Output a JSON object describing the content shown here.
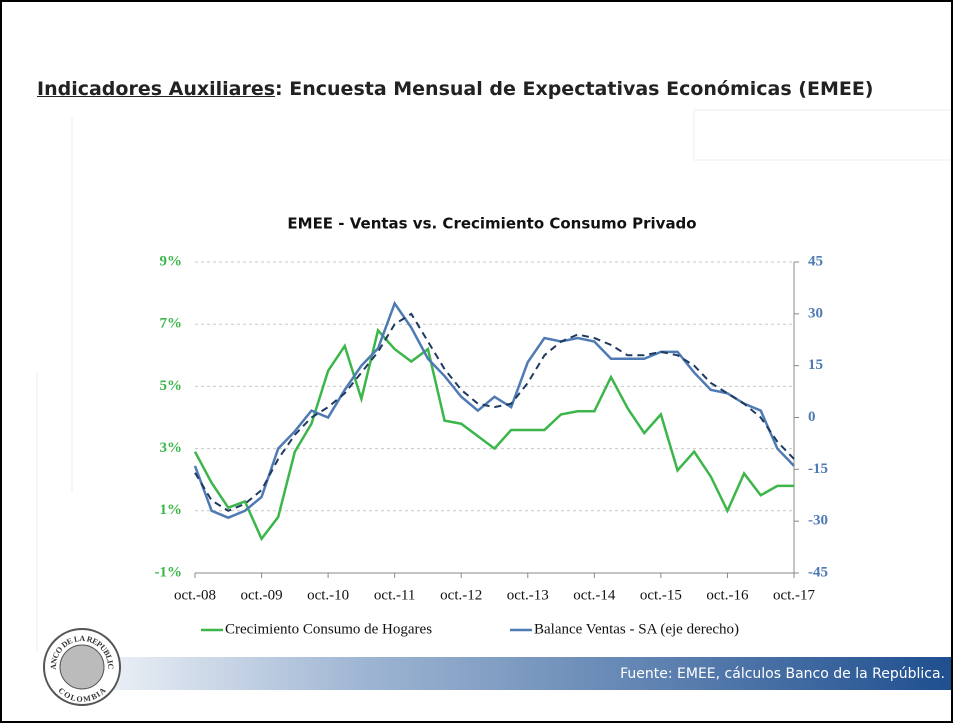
{
  "slide": {
    "title": [
      "Indicadores Auxiliares",
      ": Encuesta Mensual de Expectativas Económicas (EMEE)"
    ],
    "source": "Fuente: EMEE, cálculos Banco de la República.",
    "logo": [
      "BANCO DE LA REPUBLICA",
      "COLOMBIA"
    ]
  },
  "chart_data": {
    "type": "line",
    "title": "EMEE - Ventas vs. Crecimiento Consumo Privado",
    "categories": [
      "oct.-08",
      null,
      null,
      null,
      "oct.-09",
      null,
      null,
      null,
      "oct.-10",
      null,
      null,
      null,
      "oct.-11",
      null,
      null,
      null,
      "oct.-12",
      null,
      null,
      null,
      "oct.-13",
      null,
      null,
      null,
      "oct.-14",
      null,
      null,
      null,
      "oct.-15",
      null,
      null,
      null,
      "oct.-16",
      null,
      null,
      null,
      "oct.-17"
    ],
    "series": [
      {
        "name": "Crecimiento Consumo de Hogares",
        "color": "#3cb64a",
        "axis": "y",
        "values": [
          2.9,
          1.9,
          1.1,
          1.3,
          0.1,
          0.8,
          2.9,
          3.8,
          5.5,
          6.3,
          4.6,
          6.8,
          6.2,
          5.8,
          6.2,
          3.9,
          3.8,
          3.4,
          3.0,
          3.6,
          3.6,
          3.6,
          4.1,
          4.2,
          4.2,
          5.3,
          4.3,
          3.5,
          4.1,
          2.3,
          2.9,
          2.1,
          1.0,
          2.2,
          1.5,
          1.8,
          1.8
        ]
      },
      {
        "name": "Balance Ventas - SA (eje derecho)",
        "color": "#4f7ab3",
        "axis": "y2",
        "values": [
          -14,
          -27,
          -29,
          -27,
          -23,
          -9,
          -4,
          2,
          0,
          8,
          15,
          20,
          33,
          26,
          17,
          12,
          6,
          2,
          6,
          3,
          16,
          23,
          22,
          23,
          22,
          17,
          17,
          17,
          19,
          19,
          13,
          8,
          7,
          4,
          2,
          -9,
          -14
        ]
      },
      {
        "color": "#1f3a5f",
        "axis": "y2",
        "dashed": true,
        "values": [
          -16,
          -24,
          -27,
          -25,
          -21,
          -12,
          -5,
          0,
          3,
          7,
          13,
          19,
          27,
          30,
          22,
          14,
          8,
          4,
          3,
          4,
          10,
          18,
          22,
          24,
          23,
          21,
          18,
          18,
          19,
          18,
          15,
          10,
          7,
          4,
          0,
          -7,
          -12
        ]
      }
    ],
    "ylim": [
      -1,
      9
    ],
    "yticks": [
      {
        "value": -1,
        "label": "-1%"
      },
      {
        "value": 1,
        "label": "1%"
      },
      {
        "value": 3,
        "label": "3%"
      },
      {
        "value": 5,
        "label": "5%"
      },
      {
        "value": 7,
        "label": "7%"
      },
      {
        "value": 9,
        "label": "9%"
      }
    ],
    "y2lim": [
      -45,
      45
    ],
    "y2ticks": [
      -45,
      -30,
      -15,
      0,
      15,
      30,
      45
    ],
    "grid": true,
    "legend": "bottom"
  }
}
